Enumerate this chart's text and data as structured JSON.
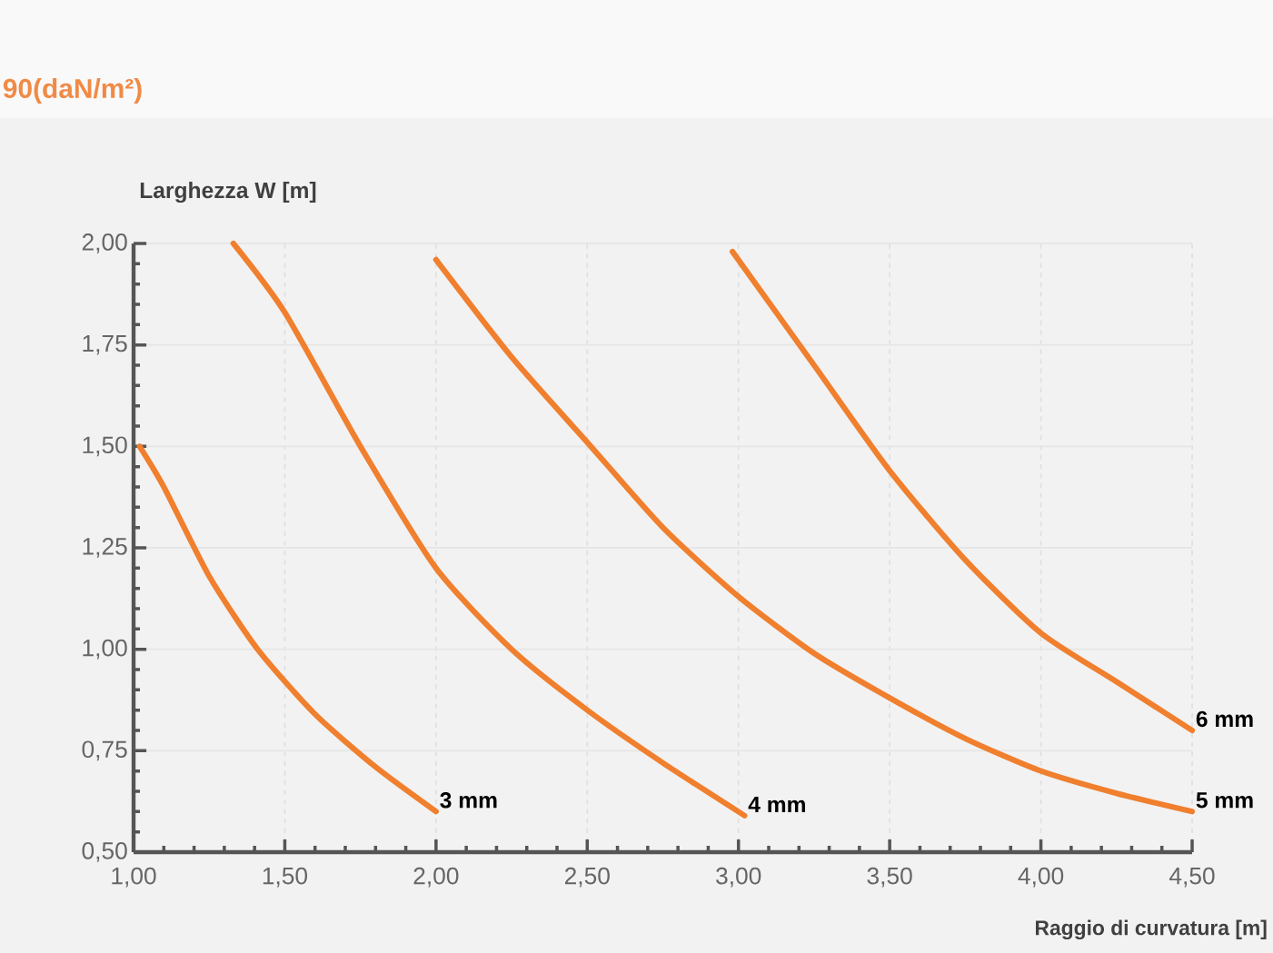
{
  "chart_data": {
    "type": "line",
    "title": "90(daN/m²)",
    "xlabel": "Raggio di curvatura [m]",
    "ylabel": "Larghezza W [m]",
    "xlim": [
      1.0,
      4.5
    ],
    "ylim": [
      0.5,
      2.0
    ],
    "xticks": [
      {
        "value": 1.0,
        "label": "1,00"
      },
      {
        "value": 1.5,
        "label": "1,50"
      },
      {
        "value": 2.0,
        "label": "2,00"
      },
      {
        "value": 2.5,
        "label": "2,50"
      },
      {
        "value": 3.0,
        "label": "3,00"
      },
      {
        "value": 3.5,
        "label": "3,50"
      },
      {
        "value": 4.0,
        "label": "4,00"
      },
      {
        "value": 4.5,
        "label": "4,50"
      }
    ],
    "yticks": [
      {
        "value": 0.5,
        "label": "0,50"
      },
      {
        "value": 0.75,
        "label": "0,75"
      },
      {
        "value": 1.0,
        "label": "1,00"
      },
      {
        "value": 1.25,
        "label": "1,25"
      },
      {
        "value": 1.5,
        "label": "1,50"
      },
      {
        "value": 1.75,
        "label": "1,75"
      },
      {
        "value": 2.0,
        "label": "2,00"
      }
    ],
    "grid": true,
    "series": [
      {
        "name": "3 mm",
        "color": "#f07f2e",
        "x": [
          1.02,
          1.1,
          1.25,
          1.41,
          1.6,
          1.8,
          2.0
        ],
        "values": [
          1.5,
          1.4,
          1.18,
          1.0,
          0.84,
          0.71,
          0.6
        ]
      },
      {
        "name": "4 mm",
        "color": "#f07f2e",
        "x": [
          1.33,
          1.5,
          1.75,
          2.0,
          2.25,
          2.5,
          2.75,
          3.02
        ],
        "values": [
          2.0,
          1.83,
          1.5,
          1.2,
          1.0,
          0.85,
          0.72,
          0.59
        ]
      },
      {
        "name": "5 mm",
        "color": "#f07f2e",
        "x": [
          2.0,
          2.25,
          2.5,
          2.75,
          3.0,
          3.25,
          3.5,
          3.75,
          4.0,
          4.25,
          4.5
        ],
        "values": [
          1.96,
          1.72,
          1.51,
          1.3,
          1.13,
          0.99,
          0.88,
          0.78,
          0.7,
          0.645,
          0.6
        ]
      },
      {
        "name": "6 mm",
        "color": "#f07f2e",
        "x": [
          2.98,
          3.25,
          3.5,
          3.75,
          4.0,
          4.25,
          4.5
        ],
        "values": [
          1.98,
          1.7,
          1.44,
          1.22,
          1.04,
          0.92,
          0.8
        ]
      }
    ]
  }
}
